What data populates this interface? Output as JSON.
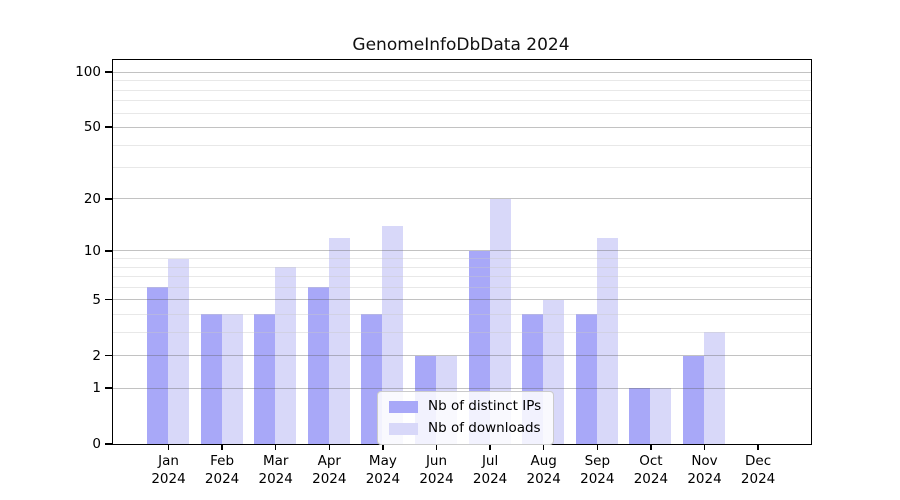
{
  "chart_data": {
    "type": "bar",
    "title": "GenomeInfoDbData 2024",
    "categories": [
      "Jan",
      "Feb",
      "Mar",
      "Apr",
      "May",
      "Jun",
      "Jul",
      "Aug",
      "Sep",
      "Oct",
      "Nov",
      "Dec"
    ],
    "category_year": "2024",
    "series": [
      {
        "name": "Nb of distinct IPs",
        "color": "#a8a8f8",
        "values": [
          6,
          4,
          4,
          6,
          4,
          2,
          10,
          4,
          4,
          1,
          2,
          0
        ]
      },
      {
        "name": "Nb of downloads",
        "color": "#d8d8f9",
        "values": [
          9,
          4,
          8,
          12,
          14,
          2,
          20,
          5,
          12,
          1,
          3,
          0
        ]
      }
    ],
    "y_scale": "log1p",
    "y_ticks": [
      0,
      1,
      2,
      5,
      10,
      20,
      50,
      100
    ],
    "major_gridlines": [
      1,
      2,
      5,
      10,
      20,
      50,
      100
    ],
    "minor_gridlines": [
      3,
      4,
      6,
      7,
      8,
      9,
      30,
      40,
      60,
      70,
      80,
      90
    ],
    "ylim": [
      0,
      117
    ],
    "grid": true,
    "legend_position": "lower center",
    "xlabel": "",
    "ylabel": ""
  },
  "colors": {
    "spine": "#000000",
    "background": "#ffffff",
    "major_grid": "#c4c4c4",
    "minor_grid": "#ececec"
  }
}
